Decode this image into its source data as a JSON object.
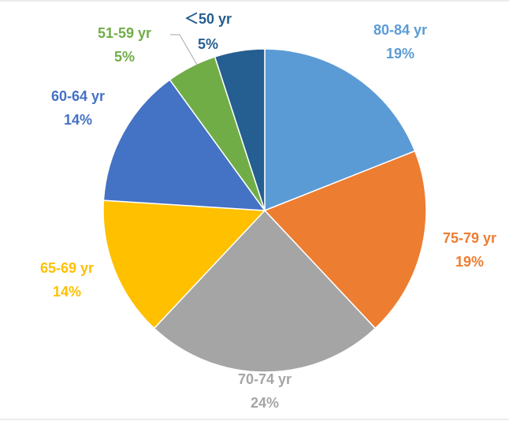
{
  "chart_data": {
    "type": "pie",
    "title": "",
    "start_angle_deg": 0,
    "direction": "clockwise",
    "slices": [
      {
        "label": "80-84 yr",
        "value": 19,
        "value_label": "19%",
        "color": "#5B9BD5"
      },
      {
        "label": "75-79 yr",
        "value": 19,
        "value_label": "19%",
        "color": "#ED7D31"
      },
      {
        "label": "70-74 yr",
        "value": 24,
        "value_label": "24%",
        "color": "#A5A5A5"
      },
      {
        "label": "65-69 yr",
        "value": 14,
        "value_label": "14%",
        "color": "#FFC000"
      },
      {
        "label": "60-64 yr",
        "value": 14,
        "value_label": "14%",
        "color": "#4472C4"
      },
      {
        "label": "51-59 yr",
        "value": 5,
        "value_label": "5%",
        "color": "#70AD47"
      },
      {
        "label": "＜50 yr",
        "value": 5,
        "value_label": "5%",
        "color": "#255E91"
      }
    ],
    "legend": "none",
    "label_position": "outside-end"
  }
}
